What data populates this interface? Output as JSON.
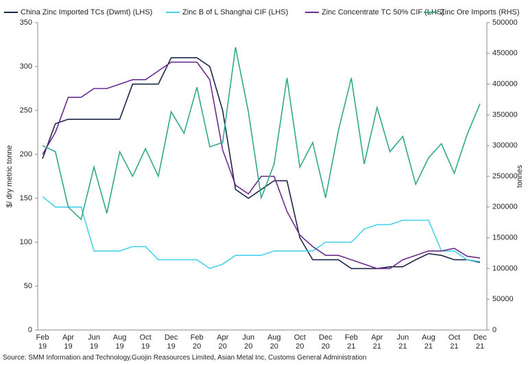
{
  "chart_data": {
    "type": "line",
    "source": "Source: SMM Information and  Technology,Guojin Reasources Limited, Asian Metal Inc, Customs General Administration",
    "ylabel": "$/ dry metric tonne",
    "y2label": "tonnes",
    "categories": [
      "Feb 19",
      null,
      "Apr 19",
      null,
      "Jun 19",
      null,
      "Aug 19",
      null,
      "Oct 19",
      null,
      "Dec 19",
      null,
      "Feb 20",
      null,
      "Apr 20",
      null,
      "Jun 20",
      null,
      "Aug 20",
      null,
      "Oct 20",
      null,
      "Dec 20",
      null,
      "Feb 21",
      null,
      "Apr 21",
      null,
      "Jun 21",
      null,
      "Aug 21",
      null,
      "Oct 21",
      null,
      "Dec 21"
    ],
    "ylim": [
      0,
      350
    ],
    "yticks": [
      0,
      50,
      100,
      150,
      200,
      250,
      300,
      350
    ],
    "y2lim": [
      0,
      500000
    ],
    "y2ticks": [
      0,
      50000,
      100000,
      150000,
      200000,
      250000,
      300000,
      350000,
      400000,
      450000,
      500000
    ],
    "legend": "top",
    "series": [
      {
        "name": "China Zinc Imported TCs (Dwmt) (LHS)",
        "color": "#1b2547",
        "values": [
          195,
          235,
          240,
          240,
          240,
          240,
          240,
          280,
          280,
          280,
          310,
          310,
          310,
          300,
          250,
          160,
          150,
          160,
          170,
          170,
          105,
          80,
          80,
          80,
          70,
          70,
          70,
          72,
          72,
          80,
          87,
          85,
          80,
          80,
          77
        ]
      },
      {
        "name": "Zinc B of L Shanghai CIF (LHS)",
        "color": "#45d2ea",
        "values": [
          152,
          140,
          140,
          140,
          90,
          90,
          90,
          95,
          95,
          80,
          80,
          80,
          80,
          70,
          75,
          85,
          85,
          85,
          90,
          90,
          90,
          90,
          100,
          100,
          100,
          115,
          120,
          120,
          125,
          125,
          125,
          90,
          90,
          80,
          78
        ]
      },
      {
        "name": "Zinc Concentrate TC 50% CIF (LHS)",
        "color": "#6a2c8c",
        "values": [
          200,
          225,
          265,
          265,
          275,
          275,
          280,
          285,
          285,
          295,
          305,
          305,
          305,
          285,
          205,
          165,
          155,
          175,
          175,
          135,
          108,
          95,
          85,
          85,
          80,
          75,
          70,
          70,
          80,
          85,
          90,
          90,
          93,
          84,
          82
        ]
      },
      {
        "name": "Zinc Ore Imports (RHS)",
        "color": "#2ea98a",
        "axis": "y2",
        "values": [
          300000,
          290000,
          200000,
          180000,
          265000,
          190000,
          290000,
          250000,
          295000,
          250000,
          355000,
          320000,
          395000,
          298000,
          305000,
          460000,
          355000,
          215000,
          270000,
          410000,
          265000,
          305000,
          215000,
          325000,
          410000,
          270000,
          362000,
          290000,
          315000,
          237000,
          280000,
          303000,
          255000,
          318000,
          368000
        ]
      }
    ]
  }
}
